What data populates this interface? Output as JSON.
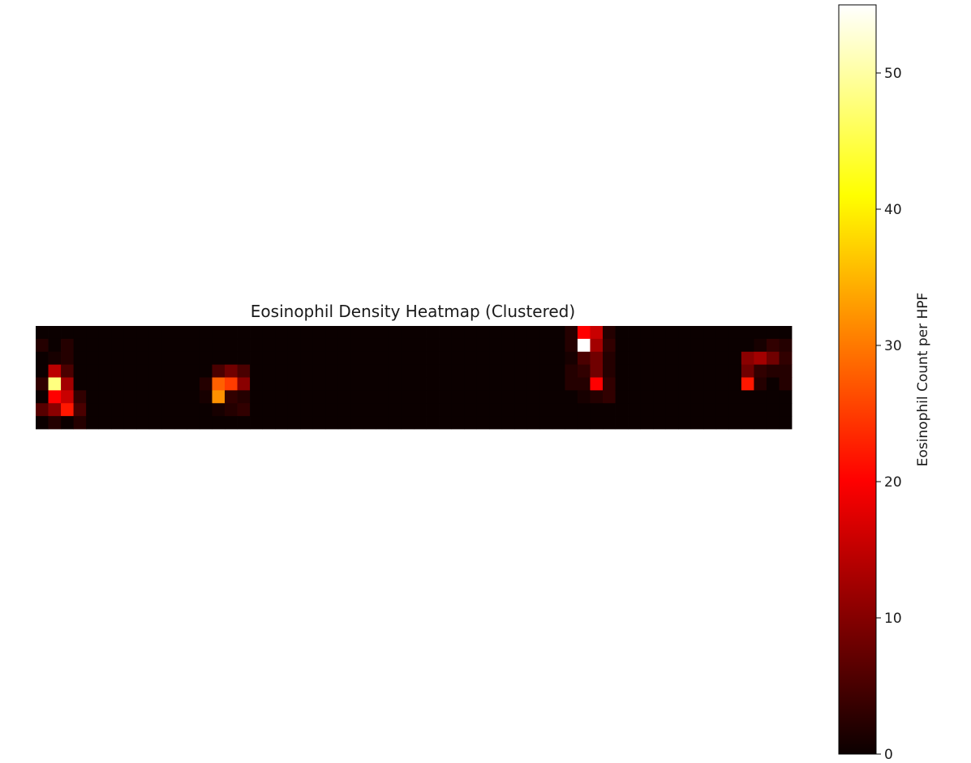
{
  "chart_data": {
    "type": "heatmap",
    "title": "Eosinophil Density Heatmap (Clustered)",
    "colormap": "hot",
    "rows": 8,
    "cols": 60,
    "vmin": 0,
    "vmax": 55,
    "colorbar": {
      "label": "Eosinophil Count per HPF",
      "ticks": [
        0,
        10,
        20,
        30,
        40,
        50
      ],
      "tick_labels": [
        "0",
        "10",
        "20",
        "30",
        "40",
        "50"
      ]
    },
    "cells": [
      [
        1,
        0,
        2
      ],
      [
        1,
        2,
        2
      ],
      [
        2,
        1,
        1
      ],
      [
        2,
        2,
        2
      ],
      [
        3,
        1,
        14
      ],
      [
        3,
        2,
        5
      ],
      [
        4,
        0,
        3
      ],
      [
        4,
        1,
        48
      ],
      [
        4,
        2,
        12
      ],
      [
        5,
        1,
        20
      ],
      [
        5,
        2,
        15
      ],
      [
        5,
        3,
        3
      ],
      [
        6,
        0,
        6
      ],
      [
        6,
        1,
        10
      ],
      [
        6,
        2,
        22
      ],
      [
        6,
        3,
        5
      ],
      [
        7,
        1,
        2
      ],
      [
        7,
        3,
        2
      ],
      [
        3,
        14,
        5
      ],
      [
        3,
        15,
        8
      ],
      [
        3,
        16,
        5
      ],
      [
        4,
        13,
        2
      ],
      [
        4,
        14,
        28
      ],
      [
        4,
        15,
        25
      ],
      [
        4,
        16,
        10
      ],
      [
        5,
        13,
        1
      ],
      [
        5,
        14,
        32
      ],
      [
        5,
        15,
        3
      ],
      [
        5,
        16,
        2
      ],
      [
        6,
        14,
        1
      ],
      [
        6,
        15,
        2
      ],
      [
        6,
        16,
        3
      ],
      [
        0,
        42,
        2
      ],
      [
        0,
        43,
        20
      ],
      [
        0,
        44,
        15
      ],
      [
        0,
        45,
        2
      ],
      [
        1,
        42,
        2
      ],
      [
        1,
        43,
        55
      ],
      [
        1,
        44,
        12
      ],
      [
        1,
        45,
        3
      ],
      [
        2,
        42,
        1
      ],
      [
        2,
        43,
        5
      ],
      [
        2,
        44,
        8
      ],
      [
        2,
        45,
        2
      ],
      [
        3,
        42,
        2
      ],
      [
        3,
        43,
        3
      ],
      [
        3,
        44,
        8
      ],
      [
        3,
        45,
        2
      ],
      [
        4,
        42,
        2
      ],
      [
        4,
        43,
        2
      ],
      [
        4,
        44,
        20
      ],
      [
        4,
        45,
        3
      ],
      [
        5,
        43,
        1
      ],
      [
        5,
        44,
        2
      ],
      [
        5,
        45,
        3
      ],
      [
        1,
        57,
        1
      ],
      [
        1,
        58,
        3
      ],
      [
        1,
        59,
        2
      ],
      [
        2,
        56,
        10
      ],
      [
        2,
        57,
        12
      ],
      [
        2,
        58,
        8
      ],
      [
        2,
        59,
        3
      ],
      [
        3,
        56,
        8
      ],
      [
        3,
        57,
        3
      ],
      [
        3,
        58,
        2
      ],
      [
        3,
        59,
        2
      ],
      [
        4,
        56,
        22
      ],
      [
        4,
        57,
        2
      ],
      [
        4,
        59,
        2
      ]
    ]
  }
}
